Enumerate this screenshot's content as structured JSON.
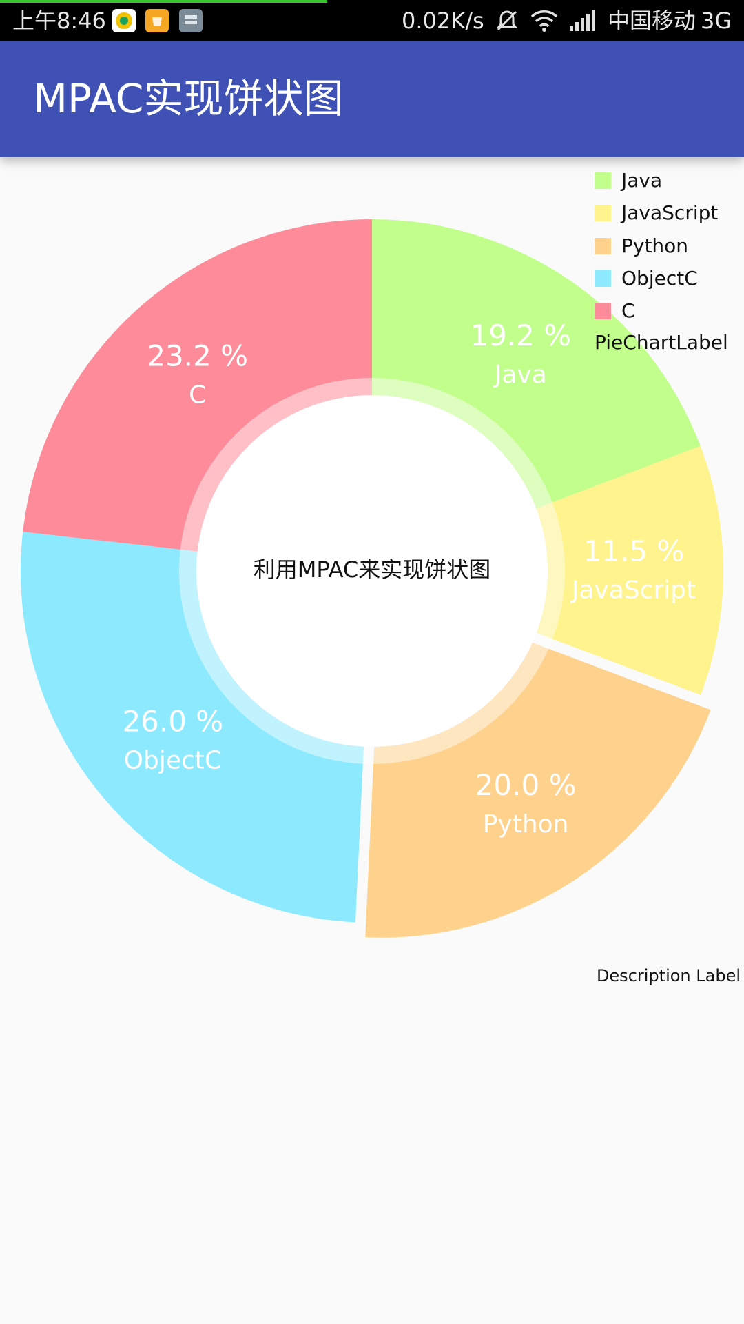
{
  "status_bar": {
    "time": "上午8:46",
    "network_speed": "0.02K/s",
    "carrier": "中国移动",
    "network_type": "3G",
    "app_icons": [
      "music-app-icon",
      "shopping-app-icon",
      "storage-app-icon"
    ],
    "system_icons": [
      "mute-icon",
      "wifi-icon",
      "signal-icon"
    ]
  },
  "app_bar": {
    "title": "MPAC实现饼状图"
  },
  "chart_data": {
    "type": "pie",
    "hole": true,
    "center_text": "利用MPAC来实现饼状图",
    "categories": [
      "Java",
      "JavaScript",
      "Python",
      "ObjectC",
      "C"
    ],
    "values": [
      19.2,
      11.5,
      20.0,
      26.0,
      23.2
    ],
    "value_labels": [
      "19.2 %",
      "11.5 %",
      "20.0 %",
      "26.0 %",
      "23.2 %"
    ],
    "colors": [
      "#c2fe8b",
      "#fef38c",
      "#fed18c",
      "#8de9fe",
      "#fe8b9a"
    ],
    "selected_slice": "Python",
    "legend": {
      "placement": "top-right",
      "entries": [
        "Java",
        "JavaScript",
        "Python",
        "ObjectC",
        "C"
      ],
      "title": "PieChartLabel"
    },
    "description": "Description Label"
  }
}
